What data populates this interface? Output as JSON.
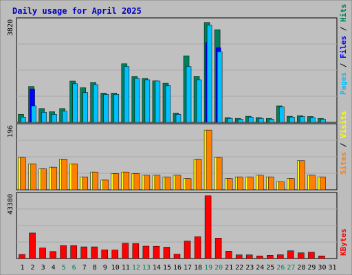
{
  "title": "Daily usage for April 2025",
  "colors": {
    "frame": "#bdbdbd",
    "plot_bg": "#c0c0c0",
    "title": "#0000c0",
    "hits": "#00805c",
    "files": "#0000ff",
    "pages": "#00c0ff",
    "visits": "#ffff00",
    "sites": "#ff8000",
    "kbytes": "#ff0000",
    "weekend": "#00805c",
    "weekday": "#000000"
  },
  "chart_data": [
    {
      "type": "bar",
      "panel": "top",
      "categories": [
        "1",
        "2",
        "3",
        "4",
        "5",
        "6",
        "7",
        "8",
        "9",
        "10",
        "11",
        "12",
        "13",
        "14",
        "15",
        "16",
        "17",
        "18",
        "19",
        "20",
        "21",
        "22",
        "23",
        "24",
        "25",
        "26",
        "27",
        "28",
        "29",
        "30",
        "31"
      ],
      "weekend_days": [
        "5",
        "6",
        "12",
        "13",
        "19",
        "20",
        "26",
        "27"
      ],
      "ymax_label": "3820",
      "ylim": [
        0,
        3820
      ],
      "series": [
        {
          "name": "Hits",
          "values": [
            300,
            1350,
            520,
            400,
            520,
            1550,
            1300,
            1500,
            1100,
            1100,
            2200,
            1720,
            1650,
            1560,
            1470,
            350,
            2500,
            1720,
            3750,
            3480,
            180,
            150,
            230,
            180,
            150,
            620,
            230,
            250,
            220,
            150,
            0
          ]
        },
        {
          "name": "Files",
          "values": [
            0,
            1250,
            0,
            0,
            0,
            0,
            0,
            0,
            0,
            0,
            0,
            0,
            0,
            0,
            0,
            0,
            0,
            0,
            3000,
            2800,
            0,
            0,
            0,
            0,
            0,
            0,
            0,
            0,
            0,
            0,
            0
          ]
        },
        {
          "name": "Pages",
          "values": [
            200,
            620,
            380,
            300,
            420,
            1450,
            1120,
            1420,
            1050,
            1050,
            2100,
            1650,
            1600,
            1550,
            1380,
            300,
            2100,
            1600,
            3650,
            2650,
            150,
            120,
            200,
            150,
            120,
            580,
            200,
            220,
            180,
            120,
            0
          ]
        }
      ],
      "legend": [
        "Pages",
        "Files",
        "Hits"
      ]
    },
    {
      "type": "bar",
      "panel": "middle",
      "categories": [
        "1",
        "2",
        "3",
        "4",
        "5",
        "6",
        "7",
        "8",
        "9",
        "10",
        "11",
        "12",
        "13",
        "14",
        "15",
        "16",
        "17",
        "18",
        "19",
        "20",
        "21",
        "22",
        "23",
        "24",
        "25",
        "26",
        "27",
        "28",
        "29",
        "30",
        "31"
      ],
      "ymax_label": "196",
      "ylim": [
        0,
        196
      ],
      "series": [
        {
          "name": "Visits",
          "values": [
            100,
            80,
            65,
            70,
            95,
            80,
            40,
            55,
            30,
            50,
            55,
            50,
            45,
            45,
            40,
            45,
            35,
            95,
            185,
            100,
            35,
            40,
            40,
            45,
            40,
            25,
            35,
            90,
            45,
            40,
            0
          ]
        },
        {
          "name": "Sites",
          "values": [
            100,
            80,
            65,
            70,
            95,
            80,
            40,
            55,
            30,
            50,
            55,
            50,
            45,
            45,
            40,
            45,
            35,
            95,
            185,
            100,
            35,
            40,
            40,
            45,
            40,
            25,
            35,
            90,
            45,
            40,
            0
          ]
        }
      ],
      "legend": [
        "Sites",
        "Visits"
      ]
    },
    {
      "type": "bar",
      "panel": "bottom",
      "categories": [
        "1",
        "2",
        "3",
        "4",
        "5",
        "6",
        "7",
        "8",
        "9",
        "10",
        "11",
        "12",
        "13",
        "14",
        "15",
        "16",
        "17",
        "18",
        "19",
        "20",
        "21",
        "22",
        "23",
        "24",
        "25",
        "26",
        "27",
        "28",
        "29",
        "30",
        "31"
      ],
      "ymax_label": "43380",
      "ylim": [
        0,
        43380
      ],
      "series": [
        {
          "name": "KBytes",
          "values": [
            2800,
            17500,
            7200,
            4800,
            8900,
            8900,
            8000,
            8000,
            5900,
            5800,
            10500,
            10300,
            8500,
            8400,
            7800,
            3000,
            12000,
            15000,
            43000,
            14000,
            5000,
            2500,
            2500,
            1800,
            2200,
            2600,
            5300,
            3900,
            4300,
            1800,
            0
          ]
        }
      ],
      "legend": [
        "KBytes"
      ]
    }
  ]
}
